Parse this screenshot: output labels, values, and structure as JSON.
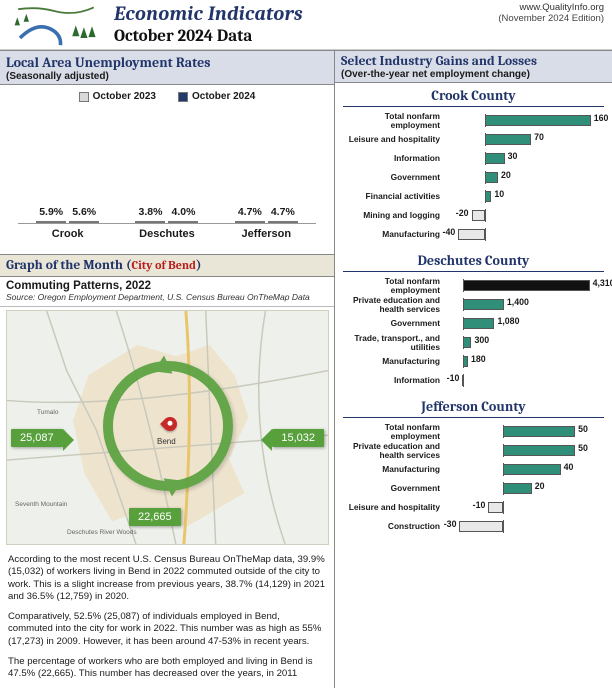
{
  "header": {
    "main_title": "Economic Indicators",
    "subtitle": "October 2024 Data",
    "site": "www.QualityInfo.org",
    "edition": "(November 2024 Edition)"
  },
  "unemp": {
    "title": "Local Area Unemployment Rates",
    "sub": "(Seasonally adjusted)",
    "legend_a": "October 2023",
    "legend_b": "October 2024",
    "color_a": "#d9d9d9",
    "color_b": "#243a6e",
    "ymax": 7,
    "groups": [
      {
        "cat": "Crook",
        "a": 5.9,
        "b": 5.6
      },
      {
        "cat": "Deschutes",
        "a": 3.8,
        "b": 4.0
      },
      {
        "cat": "Jefferson",
        "a": 4.7,
        "b": 4.7
      }
    ]
  },
  "gom": {
    "title_prefix": "Graph of the Month (",
    "city": "City of Bend",
    "title_suffix": ")",
    "subtitle": "Commuting Patterns, 2022",
    "source": "Source: Oregon Employment Department, U.S. Census Bureau OnTheMap Data",
    "flow_in": "25,087",
    "flow_out": "15,032",
    "flow_both": "22,665",
    "city_label": "Bend",
    "labels": {
      "tumalo": "Tumalo",
      "seventh": "Seventh Mountain",
      "drw": "Deschutes River Woods"
    },
    "p1": "According to the most recent U.S. Census Bureau OnTheMap data, 39.9% (15,032) of workers living in Bend in 2022 commuted outside of the city to work. This is a slight increase from previous years, 38.7% (14,129) in 2021 and 36.5% (12,759) in 2020.",
    "p2": "Comparatively, 52.5% (25,087) of individuals employed in Bend, commuted into the city for work in 2022. This number was as high as 55% (17,273) in 2009. However, it has been around 47-53% in recent years.",
    "p3": "The percentage of workers who are both employed and living in Bend is 47.5% (22,665). This number has decreased over the years, in 2011"
  },
  "gains": {
    "title": "Select Industry Gains and Losses",
    "sub": "(Over-the-year net employment change)",
    "pos_color": "#2f8f79",
    "neg_color": "#e8e8e8",
    "special_color": "#111111",
    "counties": [
      {
        "name": "Crook County",
        "max": 180,
        "min": -60,
        "rows": [
          {
            "label": "Total nonfarm employment",
            "value": 160
          },
          {
            "label": "Leisure and hospitality",
            "value": 70
          },
          {
            "label": "Information",
            "value": 30
          },
          {
            "label": "Government",
            "value": 20
          },
          {
            "label": "Financial activities",
            "value": 10
          },
          {
            "label": "Mining and logging",
            "value": -20
          },
          {
            "label": "Manufacturing",
            "value": -40
          }
        ]
      },
      {
        "name": "Deschutes County",
        "max": 4800,
        "min": -600,
        "rows": [
          {
            "label": "Total nonfarm employment",
            "value": 4310,
            "special": true
          },
          {
            "label": "Private education and health services",
            "value": 1400
          },
          {
            "label": "Government",
            "value": 1080
          },
          {
            "label": "Trade, transport., and utilities",
            "value": 300
          },
          {
            "label": "Manufacturing",
            "value": 180
          },
          {
            "label": "Information",
            "value": -10
          }
        ]
      },
      {
        "name": "Jefferson County",
        "max": 70,
        "min": -40,
        "rows": [
          {
            "label": "Total nonfarm employment",
            "value": 50
          },
          {
            "label": "Private education and health services",
            "value": 50
          },
          {
            "label": "Manufacturing",
            "value": 40
          },
          {
            "label": "Government",
            "value": 20
          },
          {
            "label": "Leisure and hospitality",
            "value": -10
          },
          {
            "label": "Construction",
            "value": -30
          }
        ]
      }
    ]
  }
}
